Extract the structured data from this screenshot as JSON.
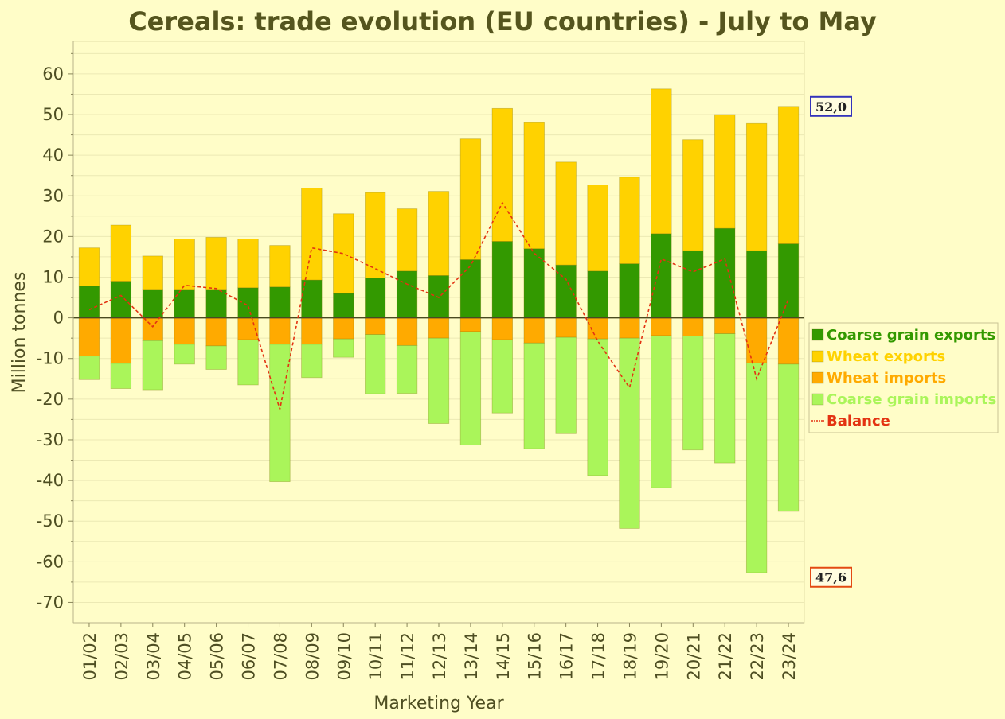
{
  "chart_data": {
    "type": "bar",
    "title": "Cereals: trade evolution (EU countries) - July to May",
    "xlabel": "Marketing Year",
    "ylabel": "Million tonnes",
    "ylim": [
      -75,
      68
    ],
    "yticks": [
      60,
      50,
      40,
      30,
      20,
      10,
      0,
      -10,
      -20,
      -30,
      -40,
      -50,
      -60,
      -70
    ],
    "grid": true,
    "legend_position": "right",
    "categories": [
      "01/02",
      "02/03",
      "03/04",
      "04/05",
      "05/06",
      "06/07",
      "07/08",
      "08/09",
      "09/10",
      "10/11",
      "11/12",
      "12/13",
      "13/14",
      "14/15",
      "15/16",
      "16/17",
      "17/18",
      "18/19",
      "19/20",
      "20/21",
      "21/22",
      "22/23",
      "23/24"
    ],
    "series": [
      {
        "name": "Coarse grain exports",
        "color": "#339900",
        "values": [
          7.8,
          9.0,
          7.0,
          7.0,
          7.0,
          7.4,
          7.6,
          9.3,
          6.0,
          9.8,
          11.5,
          10.4,
          14.3,
          18.8,
          17.0,
          13.0,
          11.5,
          13.3,
          20.7,
          16.5,
          22.0,
          16.5,
          18.2
        ]
      },
      {
        "name": "Wheat exports",
        "color": "#FFD200",
        "values": [
          9.4,
          13.8,
          8.2,
          12.4,
          12.8,
          12.0,
          10.2,
          22.6,
          19.6,
          21.0,
          15.3,
          20.7,
          29.7,
          32.7,
          31.0,
          25.3,
          21.2,
          21.3,
          35.6,
          27.3,
          28.0,
          31.3,
          33.8
        ]
      },
      {
        "name": "Wheat imports",
        "color": "#FFAA00",
        "values": [
          -9.4,
          -11.2,
          -5.6,
          -6.5,
          -6.9,
          -5.4,
          -6.5,
          -6.5,
          -5.2,
          -4.1,
          -6.8,
          -5.0,
          -3.4,
          -5.4,
          -6.2,
          -4.8,
          -5.2,
          -5.0,
          -4.4,
          -4.5,
          -3.9,
          -11.1,
          -11.4
        ]
      },
      {
        "name": "Coarse grain imports",
        "color": "#AAF55A",
        "values": [
          -5.8,
          -6.2,
          -12.1,
          -4.9,
          -5.8,
          -11.1,
          -33.8,
          -8.2,
          -4.5,
          -14.6,
          -11.8,
          -21.0,
          -27.9,
          -18.0,
          -26.0,
          -23.7,
          -33.6,
          -46.8,
          -37.4,
          -28.0,
          -31.8,
          -51.6,
          -36.2
        ]
      },
      {
        "name": "Balance",
        "type": "line",
        "color": "#E33312",
        "values": [
          2.0,
          5.5,
          -2.2,
          8.0,
          7.2,
          3.0,
          -22.5,
          17.2,
          15.8,
          12.1,
          8.3,
          5.0,
          12.8,
          28.3,
          15.9,
          9.5,
          -5.7,
          -17.2,
          14.5,
          11.3,
          14.5,
          -15.0,
          4.6
        ]
      }
    ],
    "annotations": [
      {
        "text": "52,0",
        "y": 52.0,
        "border": "#3333BB"
      },
      {
        "text": "47,6",
        "y": -63.8,
        "border": "#E34A12"
      }
    ]
  }
}
